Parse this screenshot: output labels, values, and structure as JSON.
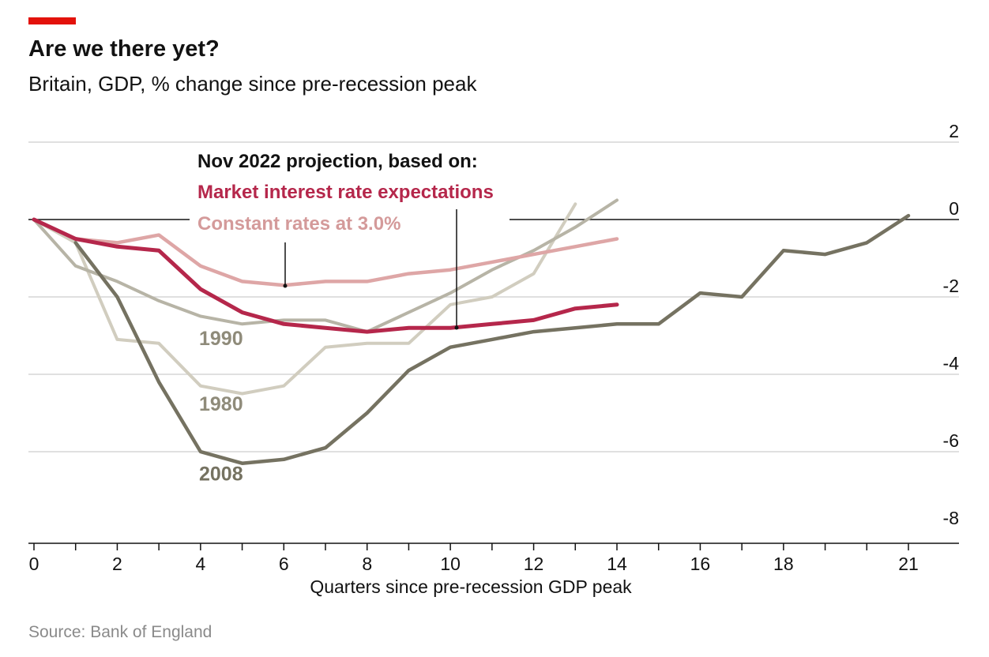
{
  "header": {
    "title": "Are we there yet?",
    "subtitle": "Britain, GDP, % change since pre-recession peak",
    "accent_color": "#e3120b"
  },
  "source": "Source: Bank of England",
  "legend": {
    "heading": "Nov 2022 projection, based on:",
    "market": "Market interest rate expectations",
    "constant": "Constant rates at 3.0%"
  },
  "chart_data": {
    "type": "line",
    "title": "Are we there yet?",
    "subtitle": "Britain, GDP, % change since pre-recession peak",
    "xlabel": "Quarters since pre-recession GDP peak",
    "ylabel": "",
    "xlim": [
      0,
      22
    ],
    "ylim": [
      -8,
      2
    ],
    "x_ticks": [
      0,
      1,
      2,
      3,
      4,
      5,
      6,
      7,
      8,
      9,
      10,
      11,
      12,
      13,
      14,
      15,
      16,
      17,
      18,
      19,
      20,
      21
    ],
    "x_tick_labels": [
      {
        "x": 0,
        "label": "0"
      },
      {
        "x": 2,
        "label": "2"
      },
      {
        "x": 4,
        "label": "4"
      },
      {
        "x": 6,
        "label": "6"
      },
      {
        "x": 8,
        "label": "8"
      },
      {
        "x": 10,
        "label": "10"
      },
      {
        "x": 12,
        "label": "12"
      },
      {
        "x": 14,
        "label": "14"
      },
      {
        "x": 16,
        "label": "16"
      },
      {
        "x": 18,
        "label": "18"
      },
      {
        "x": 21,
        "label": "21"
      }
    ],
    "y_ticks": [
      2,
      0,
      -2,
      -4,
      -6,
      -8
    ],
    "y_tick_labels": [
      "2",
      "0",
      "-2",
      "-4",
      "-6",
      "-8"
    ],
    "grid": true,
    "series": [
      {
        "name": "1980",
        "color": "#d1cdbf",
        "x": [
          0,
          1,
          2,
          3,
          4,
          5,
          6,
          7,
          8,
          9,
          10,
          11,
          12,
          13
        ],
        "values": [
          0,
          -0.6,
          -3.1,
          -3.2,
          -4.3,
          -4.5,
          -4.3,
          -3.3,
          -3.2,
          -3.2,
          -2.2,
          -2.0,
          -1.4,
          0.4
        ]
      },
      {
        "name": "1990",
        "color": "#b7b4a6",
        "x": [
          0,
          1,
          2,
          3,
          4,
          5,
          6,
          7,
          8,
          9,
          10,
          11,
          12,
          13,
          14
        ],
        "values": [
          0,
          -1.2,
          -1.6,
          -2.1,
          -2.5,
          -2.7,
          -2.6,
          -2.6,
          -2.9,
          -2.4,
          -1.9,
          -1.3,
          -0.8,
          -0.2,
          0.5
        ]
      },
      {
        "name": "2008",
        "color": "#757261",
        "x": [
          1,
          2,
          3,
          4,
          5,
          6,
          7,
          8,
          9,
          10,
          11,
          12,
          13,
          14,
          15,
          16,
          17,
          18,
          19,
          20,
          21
        ],
        "values": [
          -0.6,
          -2.0,
          -4.2,
          -6.0,
          -6.3,
          -6.2,
          -5.9,
          -5.0,
          -3.9,
          -3.3,
          -3.1,
          -2.9,
          -2.8,
          -2.7,
          -2.7,
          -1.9,
          -2.0,
          -0.8,
          -0.9,
          -0.6,
          0.1
        ]
      },
      {
        "name": "Constant rates at 3.0%",
        "color": "#dea6a6",
        "x": [
          0,
          1,
          2,
          3,
          4,
          5,
          6,
          7,
          8,
          9,
          10,
          11,
          12,
          13,
          14
        ],
        "values": [
          0,
          -0.5,
          -0.6,
          -0.4,
          -1.2,
          -1.6,
          -1.7,
          -1.6,
          -1.6,
          -1.4,
          -1.3,
          -1.1,
          -0.9,
          -0.7,
          -0.5
        ]
      },
      {
        "name": "Market interest rate expectations",
        "color": "#b5274b",
        "x": [
          0,
          1,
          2,
          3,
          4,
          5,
          6,
          7,
          8,
          9,
          10,
          11,
          12,
          13,
          14
        ],
        "values": [
          0,
          -0.5,
          -0.7,
          -0.8,
          -1.8,
          -2.4,
          -2.7,
          -2.8,
          -2.9,
          -2.8,
          -2.8,
          -2.7,
          -2.6,
          -2.3,
          -2.2
        ]
      }
    ],
    "series_labels": [
      {
        "text": "1990",
        "x": 0.35,
        "y": -3.2,
        "color": "#8f8b7a"
      },
      {
        "text": "1980",
        "x": 0.35,
        "y": -4.9,
        "color": "#8f8b7a"
      },
      {
        "text": "2008",
        "x": 0.35,
        "y": -6.7,
        "color": "#757261"
      }
    ]
  }
}
